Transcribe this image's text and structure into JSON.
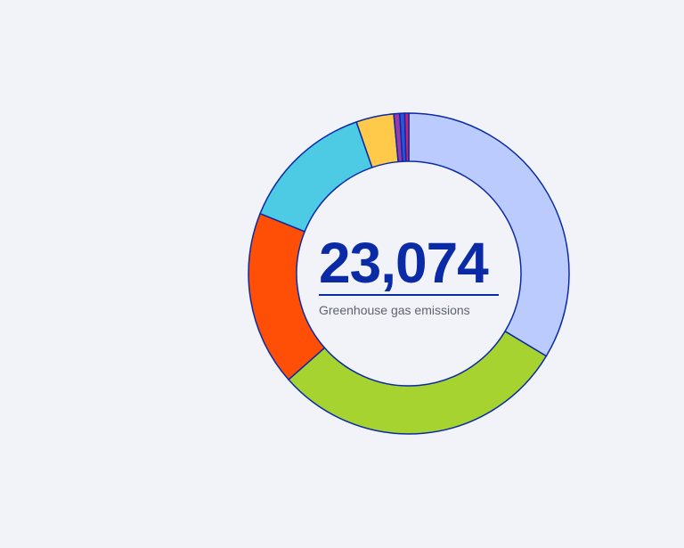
{
  "center": {
    "value": "23,074",
    "label": "Greenhouse gas emissions"
  },
  "chart_data": {
    "type": "pie",
    "total": 23074,
    "slices": [
      {
        "value": 0.336,
        "color": "#bccbfd"
      },
      {
        "value": 0.299,
        "color": "#a6d32f"
      },
      {
        "value": 0.176,
        "color": "#ff4e05"
      },
      {
        "value": 0.136,
        "color": "#4dcae4"
      },
      {
        "value": 0.038,
        "color": "#ffc94a"
      },
      {
        "value": 0.006,
        "color": "#9b3aa5"
      },
      {
        "value": 0.005,
        "color": "#2b54d6"
      },
      {
        "value": 0.004,
        "color": "#d61f6a"
      }
    ],
    "stroke_color": "#0a2aa6"
  }
}
